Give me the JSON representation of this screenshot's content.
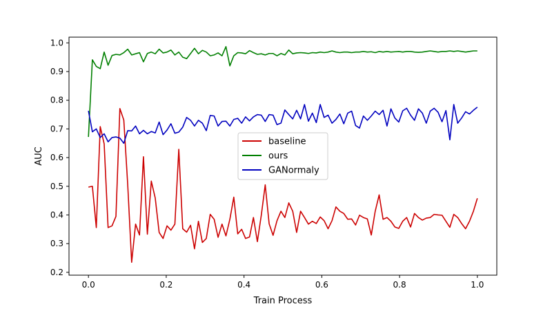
{
  "chart_data": {
    "type": "line",
    "xlabel": "Train Process",
    "ylabel": "AUC",
    "xlim": [
      -0.05,
      1.05
    ],
    "ylim": [
      0.19,
      1.02
    ],
    "grid": false,
    "legend_position": "center",
    "x_ticks": [
      0.0,
      0.2,
      0.4,
      0.6,
      0.8,
      1.0
    ],
    "x_tick_labels": [
      "0.0",
      "0.2",
      "0.4",
      "0.6",
      "0.8",
      "1.0"
    ],
    "y_ticks": [
      0.2,
      0.3,
      0.4,
      0.5,
      0.6,
      0.7,
      0.8,
      0.9,
      1.0
    ],
    "y_tick_labels": [
      "0.2",
      "0.3",
      "0.4",
      "0.5",
      "0.6",
      "0.7",
      "0.8",
      "0.9",
      "1.0"
    ],
    "x_start": 0.0,
    "x_end": 1.0,
    "series": [
      {
        "name": "baseline",
        "color": "#cc0000",
        "values": [
          0.497,
          0.5,
          0.356,
          0.708,
          0.648,
          0.356,
          0.362,
          0.395,
          0.771,
          0.731,
          0.505,
          0.235,
          0.368,
          0.33,
          0.603,
          0.333,
          0.518,
          0.459,
          0.339,
          0.318,
          0.362,
          0.347,
          0.368,
          0.629,
          0.352,
          0.34,
          0.364,
          0.282,
          0.378,
          0.304,
          0.318,
          0.402,
          0.385,
          0.322,
          0.368,
          0.327,
          0.385,
          0.462,
          0.334,
          0.35,
          0.318,
          0.323,
          0.391,
          0.307,
          0.399,
          0.505,
          0.369,
          0.329,
          0.38,
          0.413,
          0.391,
          0.442,
          0.413,
          0.339,
          0.413,
          0.391,
          0.368,
          0.378,
          0.37,
          0.393,
          0.38,
          0.352,
          0.38,
          0.428,
          0.413,
          0.405,
          0.385,
          0.386,
          0.365,
          0.399,
          0.391,
          0.386,
          0.33,
          0.413,
          0.47,
          0.385,
          0.391,
          0.378,
          0.358,
          0.353,
          0.378,
          0.391,
          0.358,
          0.405,
          0.391,
          0.382,
          0.389,
          0.391,
          0.402,
          0.4,
          0.399,
          0.378,
          0.357,
          0.402,
          0.391,
          0.37,
          0.352,
          0.378,
          0.413,
          0.458
        ]
      },
      {
        "name": "ours",
        "color": "#007f00",
        "values": [
          0.672,
          0.941,
          0.918,
          0.91,
          0.968,
          0.922,
          0.956,
          0.96,
          0.958,
          0.966,
          0.978,
          0.958,
          0.962,
          0.966,
          0.934,
          0.963,
          0.968,
          0.962,
          0.978,
          0.965,
          0.968,
          0.975,
          0.958,
          0.968,
          0.95,
          0.945,
          0.963,
          0.981,
          0.962,
          0.974,
          0.968,
          0.955,
          0.958,
          0.965,
          0.955,
          0.987,
          0.92,
          0.955,
          0.966,
          0.965,
          0.962,
          0.973,
          0.966,
          0.96,
          0.962,
          0.958,
          0.963,
          0.963,
          0.955,
          0.963,
          0.958,
          0.975,
          0.962,
          0.965,
          0.966,
          0.965,
          0.963,
          0.966,
          0.965,
          0.968,
          0.966,
          0.968,
          0.972,
          0.968,
          0.966,
          0.968,
          0.968,
          0.966,
          0.968,
          0.968,
          0.97,
          0.968,
          0.969,
          0.966,
          0.97,
          0.968,
          0.97,
          0.968,
          0.969,
          0.97,
          0.968,
          0.97,
          0.97,
          0.968,
          0.967,
          0.968,
          0.97,
          0.972,
          0.97,
          0.968,
          0.97,
          0.97,
          0.972,
          0.97,
          0.972,
          0.97,
          0.968,
          0.97,
          0.972,
          0.972
        ]
      },
      {
        "name": "GANormaly",
        "color": "#0000bf",
        "values": [
          0.763,
          0.69,
          0.7,
          0.67,
          0.683,
          0.655,
          0.67,
          0.672,
          0.668,
          0.65,
          0.694,
          0.693,
          0.71,
          0.683,
          0.695,
          0.683,
          0.691,
          0.686,
          0.724,
          0.68,
          0.696,
          0.718,
          0.685,
          0.689,
          0.706,
          0.74,
          0.73,
          0.71,
          0.73,
          0.72,
          0.694,
          0.747,
          0.745,
          0.71,
          0.726,
          0.727,
          0.71,
          0.733,
          0.737,
          0.72,
          0.742,
          0.728,
          0.742,
          0.75,
          0.748,
          0.726,
          0.75,
          0.748,
          0.715,
          0.72,
          0.766,
          0.75,
          0.735,
          0.765,
          0.735,
          0.785,
          0.727,
          0.755,
          0.722,
          0.785,
          0.74,
          0.748,
          0.72,
          0.733,
          0.752,
          0.718,
          0.755,
          0.762,
          0.712,
          0.703,
          0.745,
          0.73,
          0.745,
          0.762,
          0.75,
          0.765,
          0.71,
          0.77,
          0.738,
          0.724,
          0.763,
          0.772,
          0.748,
          0.73,
          0.77,
          0.755,
          0.72,
          0.762,
          0.772,
          0.758,
          0.725,
          0.764,
          0.662,
          0.785,
          0.72,
          0.738,
          0.76,
          0.752,
          0.765,
          0.776
        ]
      }
    ]
  }
}
